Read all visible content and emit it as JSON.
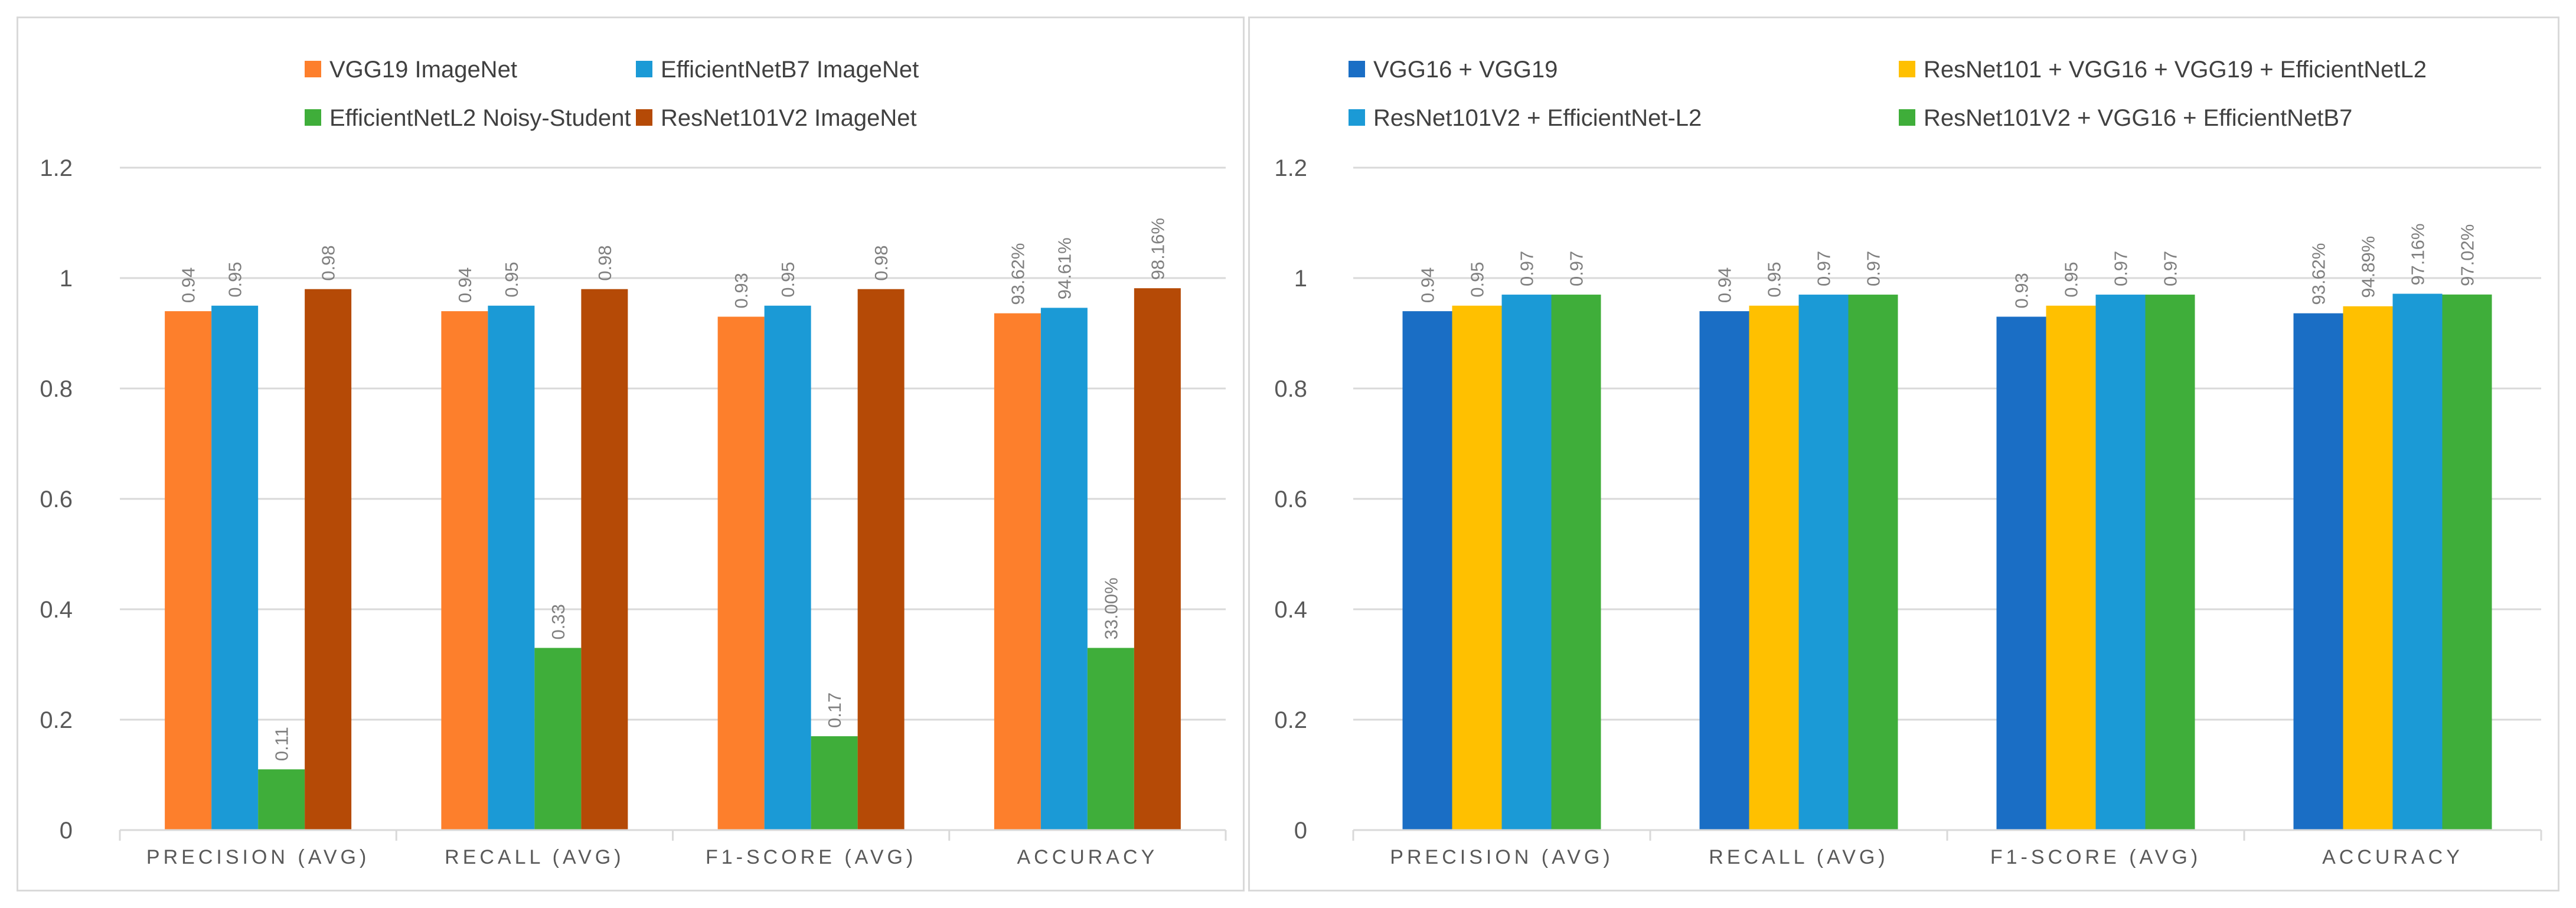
{
  "chart_data": [
    {
      "type": "bar",
      "categories": [
        "PRECISION (AVG)",
        "RECALL (AVG)",
        "F1-SCORE (AVG)",
        "ACCURACY"
      ],
      "ylim": [
        0,
        1.2
      ],
      "yticks": [
        0,
        0.2,
        0.4,
        0.6,
        0.8,
        1,
        1.2
      ],
      "ytick_labels": [
        "0",
        "0.2",
        "0.4",
        "0.6",
        "0.8",
        "1",
        "1.2"
      ],
      "grid": true,
      "legend_position": "top",
      "series": [
        {
          "name": "VGG19 ImageNet",
          "color": "#fd7f2c",
          "values": [
            0.94,
            0.94,
            0.93,
            0.9362
          ],
          "labels": [
            "0.94",
            "0.94",
            "0.93",
            "93.62%"
          ]
        },
        {
          "name": "EfficientNetB7 ImageNet",
          "color": "#1b9ad6",
          "values": [
            0.95,
            0.95,
            0.95,
            0.9461
          ],
          "labels": [
            "0.95",
            "0.95",
            "0.95",
            "94.61%"
          ]
        },
        {
          "name": "EfficientNetL2 Noisy-Student",
          "color": "#3fae3a",
          "values": [
            0.11,
            0.33,
            0.17,
            0.33
          ],
          "labels": [
            "0.11",
            "0.33",
            "0.17",
            "33.00%"
          ]
        },
        {
          "name": "ResNet101V2  ImageNet",
          "color": "#b54a06",
          "values": [
            0.98,
            0.98,
            0.98,
            0.9816
          ],
          "labels": [
            "0.98",
            "0.98",
            "0.98",
            "98.16%"
          ]
        }
      ]
    },
    {
      "type": "bar",
      "categories": [
        "PRECISION (AVG)",
        "RECALL (AVG)",
        "F1-SCORE (AVG)",
        "ACCURACY"
      ],
      "ylim": [
        0,
        1.2
      ],
      "yticks": [
        0,
        0.2,
        0.4,
        0.6,
        0.8,
        1,
        1.2
      ],
      "ytick_labels": [
        "0",
        "0.2",
        "0.4",
        "0.6",
        "0.8",
        "1",
        "1.2"
      ],
      "grid": true,
      "legend_position": "top",
      "series": [
        {
          "name": "VGG16 + VGG19",
          "color": "#1a6ec5",
          "values": [
            0.94,
            0.94,
            0.93,
            0.9362
          ],
          "labels": [
            "0.94",
            "0.94",
            "0.93",
            "93.62%"
          ]
        },
        {
          "name": "ResNet101 + VGG16 + VGG19 + EfficientNetL2",
          "color": "#ffc000",
          "values": [
            0.95,
            0.95,
            0.95,
            0.9489
          ],
          "labels": [
            "0.95",
            "0.95",
            "0.95",
            "94.89%"
          ]
        },
        {
          "name": "ResNet101V2 + EfficientNet-L2",
          "color": "#1b9ad6",
          "values": [
            0.97,
            0.97,
            0.97,
            0.9716
          ],
          "labels": [
            "0.97",
            "0.97",
            "0.97",
            "97.16%"
          ]
        },
        {
          "name": "ResNet101V2 + VGG16 + EfficientNetB7",
          "color": "#3fae3a",
          "values": [
            0.97,
            0.97,
            0.97,
            0.9702
          ],
          "labels": [
            "0.97",
            "0.97",
            "0.97",
            "97.02%"
          ]
        }
      ]
    }
  ]
}
